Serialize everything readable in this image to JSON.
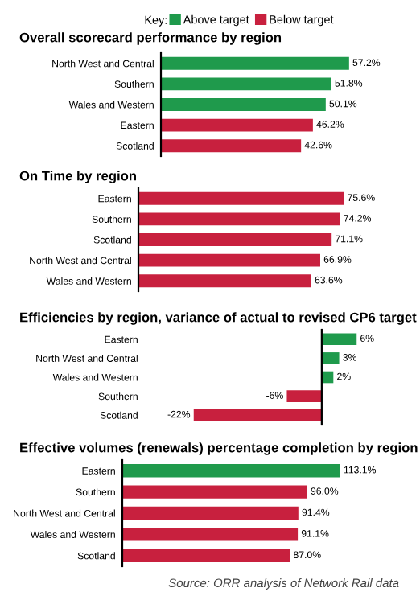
{
  "chart_data": [
    {
      "type": "bar",
      "orientation": "horizontal",
      "title": "Overall scorecard performance by region",
      "legend_title": "Key:",
      "legend": "top",
      "categories": [
        "North West and Central",
        "Southern",
        "Wales and Western",
        "Eastern",
        "Scotland"
      ],
      "series": [
        {
          "name": "Above target",
          "color": "#1f9a4c",
          "values": [
            57.2,
            51.8,
            50.1,
            null,
            null
          ],
          "value_labels": [
            "57.2%",
            "51.8%",
            "50.1%",
            null,
            null
          ]
        },
        {
          "name": "Below target",
          "color": "#c8203e",
          "values": [
            null,
            null,
            null,
            46.2,
            42.6
          ],
          "value_labels": [
            null,
            null,
            null,
            "46.2%",
            "42.6%"
          ]
        }
      ]
    },
    {
      "type": "bar",
      "orientation": "horizontal",
      "title": "On Time by region",
      "categories": [
        "Eastern",
        "Southern",
        "Scotland",
        "North West and Central",
        "Wales and Western"
      ],
      "series": [
        {
          "color": "#c8203e",
          "values": [
            75.6,
            74.2,
            71.1,
            66.9,
            63.6
          ],
          "value_labels": [
            "75.6%",
            "74.2%",
            "71.1%",
            "66.9%",
            "63.6%"
          ]
        }
      ]
    },
    {
      "type": "bar",
      "orientation": "horizontal",
      "title": "Efficiencies by region, variance of actual to revised CP6 target",
      "categories": [
        "Eastern",
        "North West and Central",
        "Wales and Western",
        "Southern",
        "Scotland"
      ],
      "series": [
        {
          "color": "#1f9a4c",
          "values": [
            6,
            3,
            2,
            null,
            null
          ],
          "value_labels": [
            "6%",
            "3%",
            "2%",
            null,
            null
          ]
        },
        {
          "color": "#c8203e",
          "values": [
            null,
            null,
            null,
            -6,
            -22
          ],
          "value_labels": [
            null,
            null,
            null,
            "-6%",
            "-22%"
          ]
        }
      ]
    },
    {
      "type": "bar",
      "orientation": "horizontal",
      "title": "Effective volumes (renewals) percentage completion by region",
      "categories": [
        "Eastern",
        "Southern",
        "North West and Central",
        "Wales and Western",
        "Scotland"
      ],
      "annotations": [
        "Source: ORR analysis of Network Rail data"
      ],
      "series": [
        {
          "color": "#1f9a4c",
          "values": [
            113.1,
            null,
            null,
            null,
            null
          ],
          "value_labels": [
            "113.1%",
            null,
            null,
            null,
            null
          ]
        },
        {
          "color": "#c8203e",
          "values": [
            null,
            96.0,
            91.4,
            91.1,
            87.0
          ],
          "value_labels": [
            null,
            "96.0%",
            "91.4%",
            "91.1%",
            "87.0%"
          ]
        }
      ]
    }
  ]
}
